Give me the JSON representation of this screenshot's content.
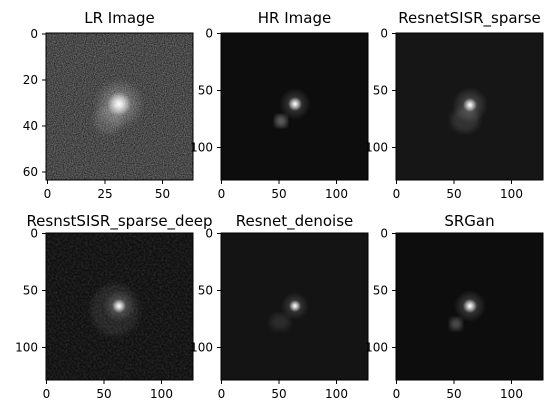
{
  "panels": [
    {
      "title": "LR Image",
      "render": "lr",
      "x_ticks": [
        "0",
        "25",
        "50"
      ],
      "y_ticks": [
        "0",
        "20",
        "40",
        "60"
      ]
    },
    {
      "title": "HR Image",
      "render": "hr",
      "x_ticks": [
        "0",
        "50",
        "100"
      ],
      "y_ticks": [
        "0",
        "50",
        "100"
      ]
    },
    {
      "title": "ResnetSISR_sparse",
      "render": "sparse",
      "x_ticks": [
        "0",
        "50",
        "100"
      ],
      "y_ticks": [
        "0",
        "50",
        "100"
      ]
    },
    {
      "title": "ResnstSISR_sparse_deep",
      "render": "deep",
      "x_ticks": [
        "0",
        "50",
        "100"
      ],
      "y_ticks": [
        "0",
        "50",
        "100"
      ]
    },
    {
      "title": "Resnet_denoise",
      "render": "denoise",
      "x_ticks": [
        "0",
        "50",
        "100"
      ],
      "y_ticks": [
        "0",
        "50",
        "100"
      ]
    },
    {
      "title": "SRGan",
      "render": "srgan",
      "x_ticks": [
        "0",
        "50",
        "100"
      ],
      "y_ticks": [
        "0",
        "50",
        "100"
      ]
    }
  ],
  "colormap": "grayscale",
  "axis_color": "#000000"
}
